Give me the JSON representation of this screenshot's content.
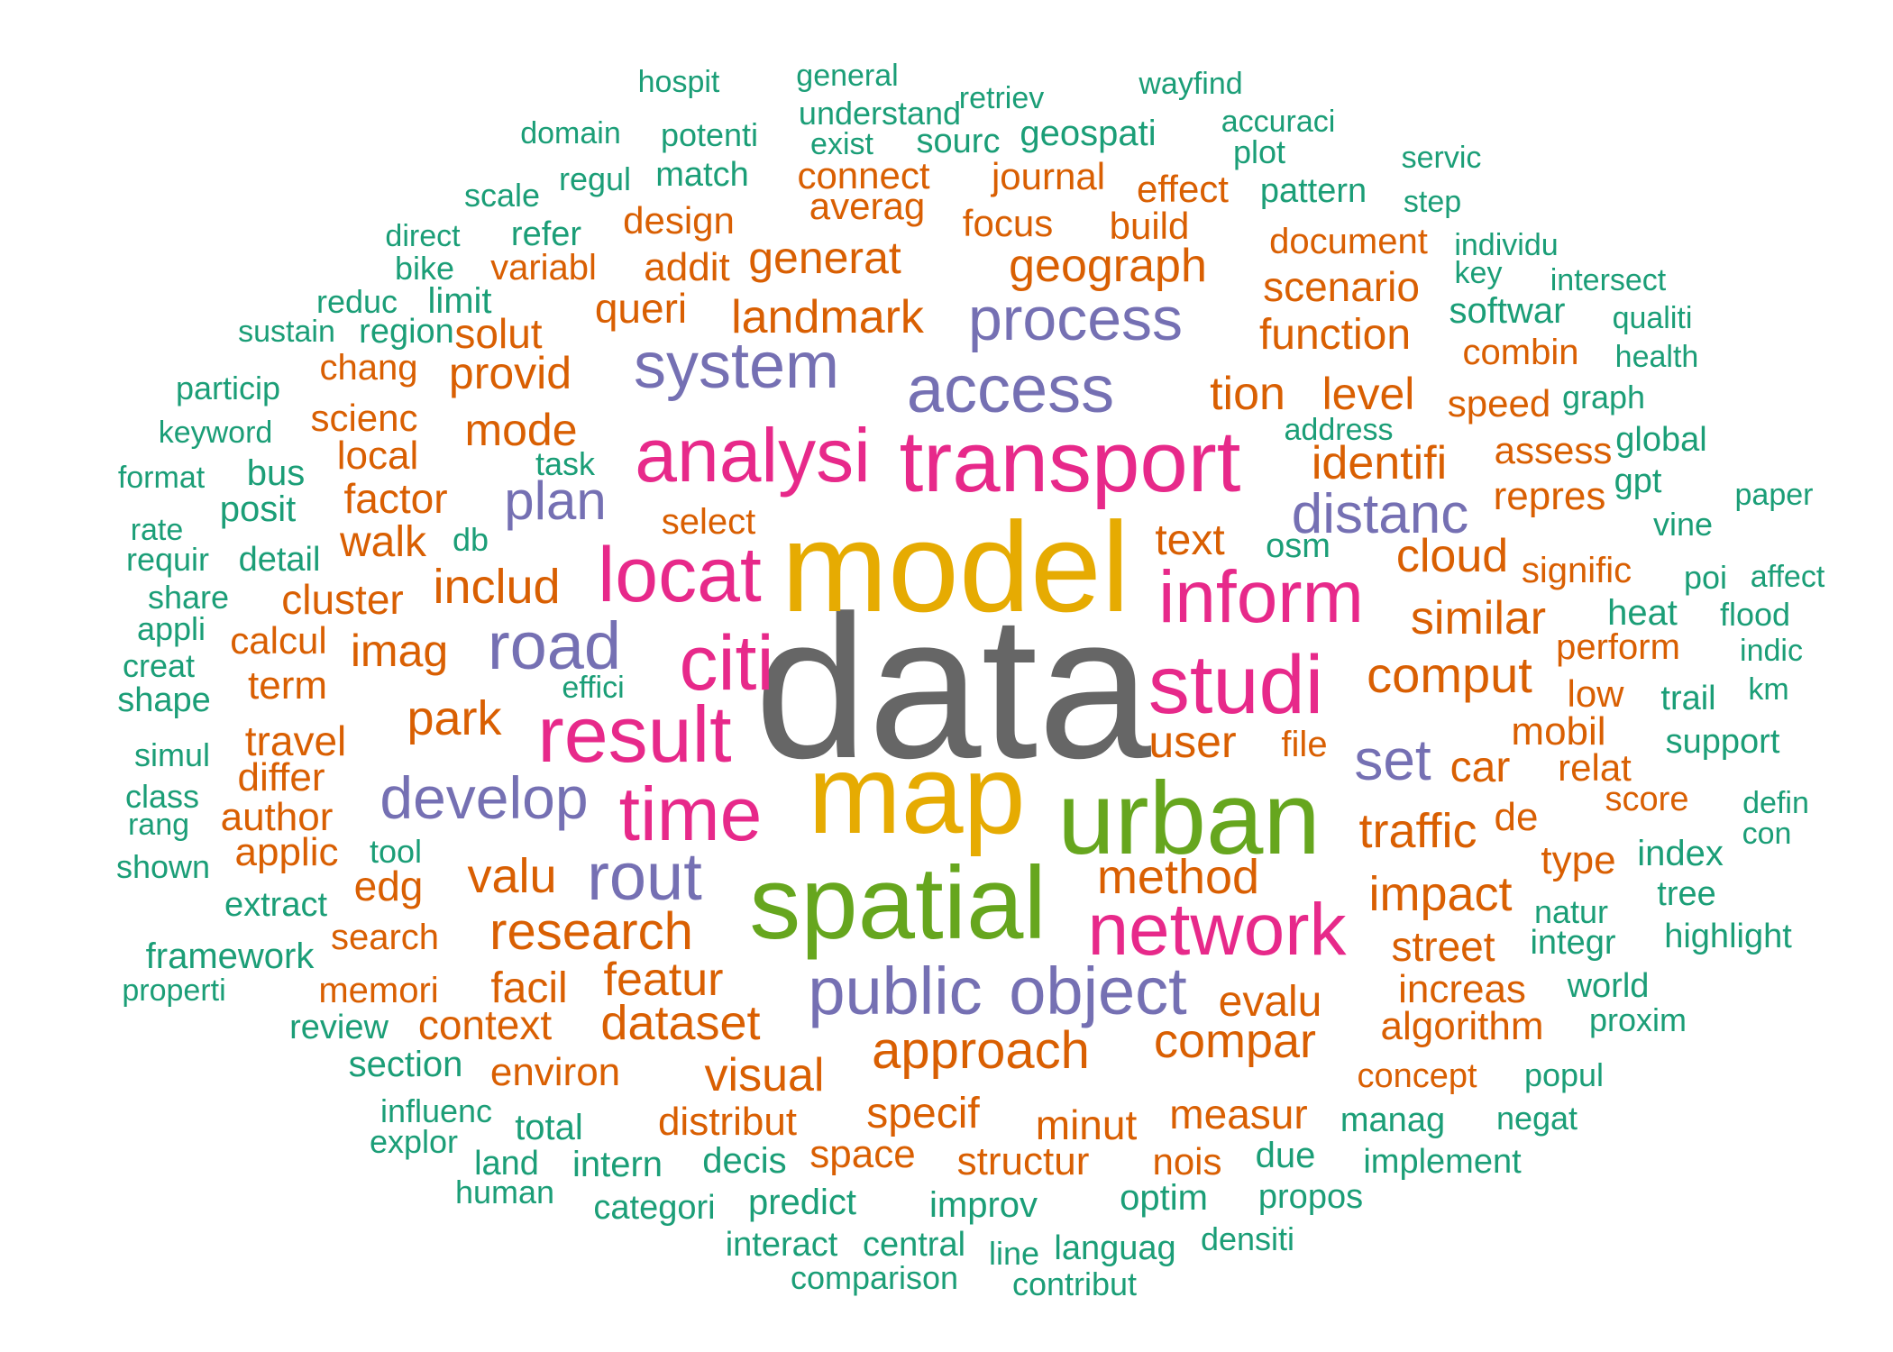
{
  "palette": [
    "#666666",
    "#e6ab02",
    "#66a61e",
    "#e7298a",
    "#7570b3",
    "#d95f02",
    "#1b9e77"
  ],
  "words": [
    {
      "text": "data",
      "color": 0
    },
    {
      "text": "model",
      "color": 1
    },
    {
      "text": "map",
      "color": 1
    },
    {
      "text": "urban",
      "color": 2
    },
    {
      "text": "spatial",
      "color": 2
    },
    {
      "text": "transport",
      "color": 3
    },
    {
      "text": "analysi",
      "color": 3
    },
    {
      "text": "studi",
      "color": 3
    },
    {
      "text": "locat",
      "color": 3
    },
    {
      "text": "citi",
      "color": 3
    },
    {
      "text": "result",
      "color": 3
    },
    {
      "text": "inform",
      "color": 3
    },
    {
      "text": "network",
      "color": 3
    },
    {
      "text": "time",
      "color": 3
    },
    {
      "text": "system",
      "color": 4
    },
    {
      "text": "access",
      "color": 4
    },
    {
      "text": "process",
      "color": 4
    },
    {
      "text": "public",
      "color": 4
    },
    {
      "text": "object",
      "color": 4
    },
    {
      "text": "road",
      "color": 4
    },
    {
      "text": "rout",
      "color": 4
    },
    {
      "text": "develop",
      "color": 4
    },
    {
      "text": "distanc",
      "color": 4
    },
    {
      "text": "plan",
      "color": 4
    },
    {
      "text": "set",
      "color": 4
    },
    {
      "text": "approach",
      "color": 5
    },
    {
      "text": "research",
      "color": 5
    },
    {
      "text": "method",
      "color": 5
    },
    {
      "text": "comput",
      "color": 5
    },
    {
      "text": "identifi",
      "color": 5
    },
    {
      "text": "impact",
      "color": 5
    },
    {
      "text": "geograph",
      "color": 5
    },
    {
      "text": "landmark",
      "color": 5
    },
    {
      "text": "generat",
      "color": 5
    },
    {
      "text": "includ",
      "color": 5
    },
    {
      "text": "dataset",
      "color": 5
    },
    {
      "text": "tion",
      "color": 5
    },
    {
      "text": "level",
      "color": 5
    },
    {
      "text": "function",
      "color": 5
    },
    {
      "text": "scenario",
      "color": 5
    },
    {
      "text": "similar",
      "color": 5
    },
    {
      "text": "cloud",
      "color": 5
    },
    {
      "text": "traffic",
      "color": 5
    },
    {
      "text": "visual",
      "color": 5
    },
    {
      "text": "compar",
      "color": 5
    },
    {
      "text": "evalu",
      "color": 5
    },
    {
      "text": "specif",
      "color": 5
    },
    {
      "text": "minut",
      "color": 5
    },
    {
      "text": "measur",
      "color": 5
    },
    {
      "text": "featur",
      "color": 5
    },
    {
      "text": "user",
      "color": 5
    },
    {
      "text": "park",
      "color": 5
    },
    {
      "text": "valu",
      "color": 5
    },
    {
      "text": "mode",
      "color": 5
    },
    {
      "text": "imag",
      "color": 5
    },
    {
      "text": "street",
      "color": 5
    },
    {
      "text": "car",
      "color": 5
    },
    {
      "text": "mobil",
      "color": 5
    },
    {
      "text": "queri",
      "color": 5
    },
    {
      "text": "addit",
      "color": 5
    },
    {
      "text": "design",
      "color": 5
    },
    {
      "text": "focus",
      "color": 5
    },
    {
      "text": "build",
      "color": 5
    },
    {
      "text": "averag",
      "color": 5
    },
    {
      "text": "connect",
      "color": 5
    },
    {
      "text": "journal",
      "color": 5
    },
    {
      "text": "effect",
      "color": 5
    },
    {
      "text": "document",
      "color": 5
    },
    {
      "text": "solut",
      "color": 5
    },
    {
      "text": "provid",
      "color": 5
    },
    {
      "text": "variabl",
      "color": 5
    },
    {
      "text": "chang",
      "color": 5
    },
    {
      "text": "scienc",
      "color": 5
    },
    {
      "text": "local",
      "color": 5
    },
    {
      "text": "factor",
      "color": 5
    },
    {
      "text": "walk",
      "color": 5
    },
    {
      "text": "cluster",
      "color": 5
    },
    {
      "text": "calcul",
      "color": 5
    },
    {
      "text": "term",
      "color": 5
    },
    {
      "text": "travel",
      "color": 5
    },
    {
      "text": "differ",
      "color": 5
    },
    {
      "text": "author",
      "color": 5
    },
    {
      "text": "applic",
      "color": 5
    },
    {
      "text": "edg",
      "color": 5
    },
    {
      "text": "search",
      "color": 5
    },
    {
      "text": "memori",
      "color": 5
    },
    {
      "text": "facil",
      "color": 5
    },
    {
      "text": "context",
      "color": 5
    },
    {
      "text": "environ",
      "color": 5
    },
    {
      "text": "distribut",
      "color": 5
    },
    {
      "text": "space",
      "color": 5
    },
    {
      "text": "structur",
      "color": 5
    },
    {
      "text": "nois",
      "color": 5
    },
    {
      "text": "text",
      "color": 5
    },
    {
      "text": "select",
      "color": 5
    },
    {
      "text": "file",
      "color": 5
    },
    {
      "text": "de",
      "color": 5
    },
    {
      "text": "speed",
      "color": 5
    },
    {
      "text": "combin",
      "color": 5
    },
    {
      "text": "assess",
      "color": 5
    },
    {
      "text": "repres",
      "color": 5
    },
    {
      "text": "signific",
      "color": 5
    },
    {
      "text": "perform",
      "color": 5
    },
    {
      "text": "low",
      "color": 5
    },
    {
      "text": "relat",
      "color": 5
    },
    {
      "text": "score",
      "color": 5
    },
    {
      "text": "type",
      "color": 5
    },
    {
      "text": "increas",
      "color": 5
    },
    {
      "text": "algorithm",
      "color": 5
    },
    {
      "text": "concept",
      "color": 5
    },
    {
      "text": "hospit",
      "color": 6
    },
    {
      "text": "general",
      "color": 6
    },
    {
      "text": "retriev",
      "color": 6
    },
    {
      "text": "wayfind",
      "color": 6
    },
    {
      "text": "understand",
      "color": 6
    },
    {
      "text": "accuraci",
      "color": 6
    },
    {
      "text": "domain",
      "color": 6
    },
    {
      "text": "potenti",
      "color": 6
    },
    {
      "text": "exist",
      "color": 6
    },
    {
      "text": "sourc",
      "color": 6
    },
    {
      "text": "geospati",
      "color": 6
    },
    {
      "text": "plot",
      "color": 6
    },
    {
      "text": "servic",
      "color": 6
    },
    {
      "text": "regul",
      "color": 6
    },
    {
      "text": "match",
      "color": 6
    },
    {
      "text": "scale",
      "color": 6
    },
    {
      "text": "pattern",
      "color": 6
    },
    {
      "text": "step",
      "color": 6
    },
    {
      "text": "direct",
      "color": 6
    },
    {
      "text": "refer",
      "color": 6
    },
    {
      "text": "individu",
      "color": 6
    },
    {
      "text": "bike",
      "color": 6
    },
    {
      "text": "key",
      "color": 6
    },
    {
      "text": "intersect",
      "color": 6
    },
    {
      "text": "reduc",
      "color": 6
    },
    {
      "text": "limit",
      "color": 6
    },
    {
      "text": "softwar",
      "color": 6
    },
    {
      "text": "qualiti",
      "color": 6
    },
    {
      "text": "sustain",
      "color": 6
    },
    {
      "text": "region",
      "color": 6
    },
    {
      "text": "health",
      "color": 6
    },
    {
      "text": "particip",
      "color": 6
    },
    {
      "text": "graph",
      "color": 6
    },
    {
      "text": "keyword",
      "color": 6
    },
    {
      "text": "address",
      "color": 6
    },
    {
      "text": "global",
      "color": 6
    },
    {
      "text": "format",
      "color": 6
    },
    {
      "text": "bus",
      "color": 6
    },
    {
      "text": "task",
      "color": 6
    },
    {
      "text": "gpt",
      "color": 6
    },
    {
      "text": "paper",
      "color": 6
    },
    {
      "text": "posit",
      "color": 6
    },
    {
      "text": "rate",
      "color": 6
    },
    {
      "text": "db",
      "color": 6
    },
    {
      "text": "vine",
      "color": 6
    },
    {
      "text": "requir",
      "color": 6
    },
    {
      "text": "detail",
      "color": 6
    },
    {
      "text": "osm",
      "color": 6
    },
    {
      "text": "poi",
      "color": 6
    },
    {
      "text": "affect",
      "color": 6
    },
    {
      "text": "share",
      "color": 6
    },
    {
      "text": "heat",
      "color": 6
    },
    {
      "text": "flood",
      "color": 6
    },
    {
      "text": "appli",
      "color": 6
    },
    {
      "text": "indic",
      "color": 6
    },
    {
      "text": "creat",
      "color": 6
    },
    {
      "text": "effici",
      "color": 6
    },
    {
      "text": "shape",
      "color": 6
    },
    {
      "text": "trail",
      "color": 6
    },
    {
      "text": "km",
      "color": 6
    },
    {
      "text": "simul",
      "color": 6
    },
    {
      "text": "support",
      "color": 6
    },
    {
      "text": "class",
      "color": 6
    },
    {
      "text": "defin",
      "color": 6
    },
    {
      "text": "rang",
      "color": 6
    },
    {
      "text": "con",
      "color": 6
    },
    {
      "text": "shown",
      "color": 6
    },
    {
      "text": "tool",
      "color": 6
    },
    {
      "text": "index",
      "color": 6
    },
    {
      "text": "extract",
      "color": 6
    },
    {
      "text": "tree",
      "color": 6
    },
    {
      "text": "natur",
      "color": 6
    },
    {
      "text": "highlight",
      "color": 6
    },
    {
      "text": "framework",
      "color": 6
    },
    {
      "text": "integr",
      "color": 6
    },
    {
      "text": "properti",
      "color": 6
    },
    {
      "text": "world",
      "color": 6
    },
    {
      "text": "review",
      "color": 6
    },
    {
      "text": "proxim",
      "color": 6
    },
    {
      "text": "section",
      "color": 6
    },
    {
      "text": "popul",
      "color": 6
    },
    {
      "text": "influenc",
      "color": 6
    },
    {
      "text": "total",
      "color": 6
    },
    {
      "text": "manag",
      "color": 6
    },
    {
      "text": "negat",
      "color": 6
    },
    {
      "text": "explor",
      "color": 6
    },
    {
      "text": "land",
      "color": 6
    },
    {
      "text": "intern",
      "color": 6
    },
    {
      "text": "decis",
      "color": 6
    },
    {
      "text": "due",
      "color": 6
    },
    {
      "text": "implement",
      "color": 6
    },
    {
      "text": "human",
      "color": 6
    },
    {
      "text": "categori",
      "color": 6
    },
    {
      "text": "predict",
      "color": 6
    },
    {
      "text": "improv",
      "color": 6
    },
    {
      "text": "optim",
      "color": 6
    },
    {
      "text": "propos",
      "color": 6
    },
    {
      "text": "interact",
      "color": 6
    },
    {
      "text": "central",
      "color": 6
    },
    {
      "text": "line",
      "color": 6
    },
    {
      "text": "languag",
      "color": 6
    },
    {
      "text": "densiti",
      "color": 6
    },
    {
      "text": "comparison",
      "color": 6
    },
    {
      "text": "contribut",
      "color": 6
    }
  ]
}
